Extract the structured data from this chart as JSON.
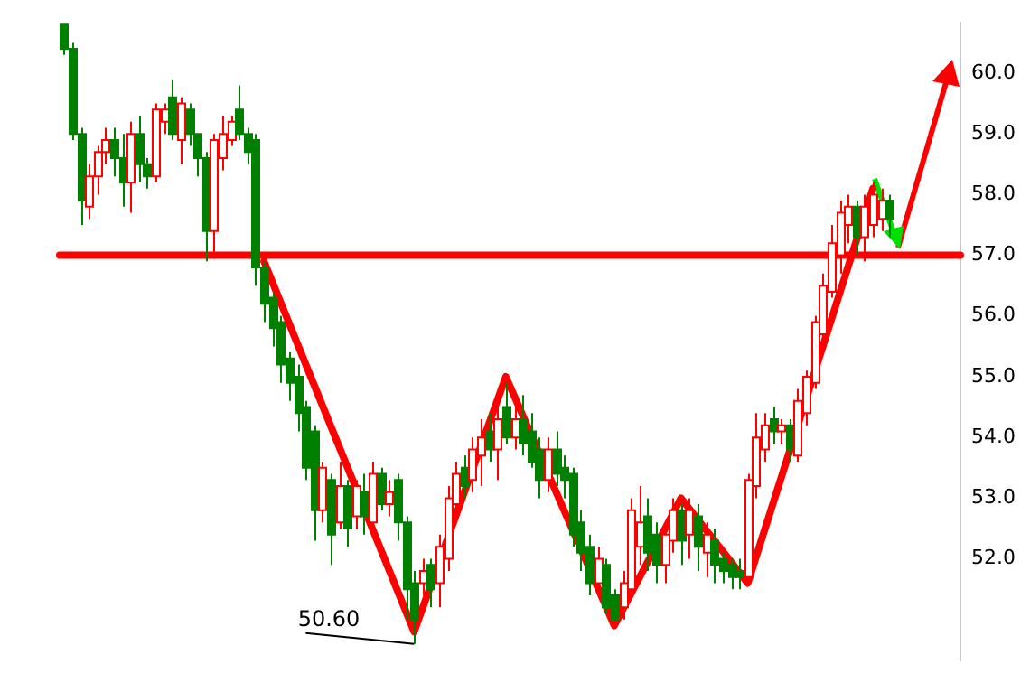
{
  "chart_data": {
    "type": "candlestick",
    "categories": [
      null,
      null,
      null,
      null,
      null,
      null,
      null,
      null,
      null,
      null,
      null,
      null,
      null,
      null,
      null,
      null,
      null,
      null,
      null,
      null,
      null,
      null,
      null,
      null,
      null,
      null,
      null,
      null,
      null,
      null,
      null,
      null,
      null,
      null,
      null,
      null,
      null,
      null,
      null,
      null,
      null,
      null,
      null,
      null,
      null,
      null,
      null,
      null,
      null,
      null,
      null,
      null,
      null,
      null,
      null,
      null,
      null,
      null,
      null,
      null,
      null,
      null,
      null,
      null,
      null,
      null,
      null,
      null,
      null,
      null,
      null,
      null,
      null,
      null,
      null,
      null,
      null,
      null,
      null,
      null,
      null,
      null,
      null,
      null,
      null,
      null,
      null,
      null,
      null,
      null,
      null,
      null,
      null,
      null,
      null,
      null,
      null,
      null,
      null,
      null,
      null,
      null,
      null,
      null,
      null,
      null,
      null,
      null
    ],
    "ohlc": [
      [
        60.8,
        60.8,
        60.3,
        60.4
      ],
      [
        60.4,
        60.5,
        58.9,
        59.0
      ],
      [
        59.0,
        59.1,
        57.5,
        57.9
      ],
      [
        57.8,
        58.5,
        57.6,
        58.3
      ],
      [
        58.3,
        58.8,
        58.0,
        58.7
      ],
      [
        58.7,
        59.1,
        58.5,
        58.9
      ],
      [
        58.9,
        59.1,
        58.3,
        58.6
      ],
      [
        58.6,
        59.0,
        57.8,
        58.2
      ],
      [
        58.2,
        59.2,
        57.7,
        59.0
      ],
      [
        59.0,
        59.3,
        58.2,
        58.5
      ],
      [
        58.5,
        58.6,
        58.1,
        58.3
      ],
      [
        58.3,
        59.5,
        58.2,
        59.4
      ],
      [
        59.2,
        59.5,
        59.0,
        59.4
      ],
      [
        59.6,
        59.9,
        58.9,
        59.0
      ],
      [
        58.9,
        59.6,
        58.5,
        59.5
      ],
      [
        59.4,
        59.5,
        58.8,
        59.0
      ],
      [
        59.0,
        59.0,
        58.3,
        58.6
      ],
      [
        58.6,
        58.7,
        56.9,
        57.4
      ],
      [
        57.4,
        59.0,
        57.0,
        58.9
      ],
      [
        58.6,
        59.3,
        58.4,
        59.0
      ],
      [
        58.9,
        59.3,
        58.8,
        59.2
      ],
      [
        59.4,
        59.8,
        58.9,
        59.0
      ],
      [
        59.0,
        59.1,
        58.5,
        58.7
      ],
      [
        58.9,
        59.0,
        56.5,
        56.8
      ],
      [
        56.8,
        56.9,
        55.9,
        56.2
      ],
      [
        56.3,
        56.4,
        55.5,
        55.8
      ],
      [
        55.9,
        56.0,
        54.9,
        55.2
      ],
      [
        55.3,
        55.4,
        54.6,
        54.9
      ],
      [
        55.0,
        55.2,
        54.1,
        54.4
      ],
      [
        54.5,
        54.6,
        53.3,
        53.5
      ],
      [
        54.1,
        54.2,
        52.3,
        52.8
      ],
      [
        52.8,
        53.6,
        52.6,
        53.5
      ],
      [
        53.3,
        53.4,
        51.9,
        52.4
      ],
      [
        52.6,
        53.6,
        52.5,
        53.2
      ],
      [
        53.2,
        53.3,
        52.2,
        52.5
      ],
      [
        52.7,
        53.3,
        52.5,
        53.2
      ],
      [
        53.1,
        53.4,
        52.4,
        52.7
      ],
      [
        52.6,
        53.6,
        52.5,
        53.4
      ],
      [
        53.4,
        53.5,
        52.8,
        52.9
      ],
      [
        52.9,
        53.3,
        52.7,
        53.1
      ],
      [
        53.3,
        53.4,
        52.3,
        52.6
      ],
      [
        52.6,
        52.7,
        51.0,
        51.5
      ],
      [
        51.6,
        51.8,
        50.6,
        51.0
      ],
      [
        51.6,
        52.0,
        51.4,
        51.8
      ],
      [
        51.9,
        52.0,
        51.2,
        51.5
      ],
      [
        51.6,
        52.4,
        51.2,
        52.2
      ],
      [
        52.0,
        53.2,
        51.8,
        53.0
      ],
      [
        52.9,
        53.6,
        52.7,
        53.4
      ],
      [
        53.5,
        53.7,
        53.0,
        53.2
      ],
      [
        53.3,
        54.0,
        53.1,
        53.8
      ],
      [
        53.7,
        54.3,
        53.2,
        54.0
      ],
      [
        54.1,
        54.4,
        53.6,
        53.8
      ],
      [
        53.8,
        54.5,
        53.3,
        54.3
      ],
      [
        54.5,
        54.9,
        53.9,
        54.0
      ],
      [
        54.0,
        54.5,
        53.8,
        54.3
      ],
      [
        54.3,
        54.7,
        53.7,
        53.9
      ],
      [
        54.1,
        54.4,
        53.5,
        53.6
      ],
      [
        53.8,
        54.0,
        53.0,
        53.3
      ],
      [
        53.3,
        54.0,
        53.1,
        53.8
      ],
      [
        53.8,
        54.1,
        53.2,
        53.4
      ],
      [
        53.5,
        53.7,
        53.0,
        53.3
      ],
      [
        53.4,
        53.5,
        52.2,
        52.4
      ],
      [
        52.6,
        52.8,
        51.8,
        52.1
      ],
      [
        52.2,
        52.4,
        51.4,
        51.6
      ],
      [
        51.6,
        52.2,
        51.4,
        52.0
      ],
      [
        51.9,
        52.0,
        51.1,
        51.2
      ],
      [
        51.4,
        51.5,
        51.0,
        51.0
      ],
      [
        51.2,
        51.8,
        51.0,
        51.6
      ],
      [
        51.5,
        53.0,
        51.4,
        52.8
      ],
      [
        52.2,
        53.2,
        51.9,
        52.6
      ],
      [
        52.7,
        53.0,
        51.8,
        52.1
      ],
      [
        52.4,
        52.6,
        51.6,
        51.9
      ],
      [
        51.9,
        52.6,
        51.6,
        52.4
      ],
      [
        52.3,
        53.0,
        52.1,
        52.8
      ],
      [
        52.8,
        52.9,
        51.9,
        52.3
      ],
      [
        52.4,
        53.0,
        52.0,
        52.8
      ],
      [
        52.7,
        52.9,
        51.8,
        52.2
      ],
      [
        52.1,
        52.6,
        51.7,
        52.4
      ],
      [
        52.3,
        52.5,
        51.6,
        51.9
      ],
      [
        52.0,
        52.1,
        51.6,
        51.8
      ],
      [
        51.9,
        52.0,
        51.5,
        51.7
      ],
      [
        51.8,
        52.0,
        51.5,
        51.7
      ],
      [
        51.7,
        53.4,
        51.6,
        53.3
      ],
      [
        53.2,
        54.4,
        53.0,
        54.0
      ],
      [
        53.8,
        54.4,
        53.6,
        54.2
      ],
      [
        54.3,
        54.5,
        53.9,
        54.1
      ],
      [
        54.1,
        54.3,
        53.9,
        54.2
      ],
      [
        54.2,
        54.3,
        53.6,
        53.8
      ],
      [
        53.7,
        54.8,
        53.6,
        54.6
      ],
      [
        54.4,
        55.1,
        54.2,
        55.0
      ],
      [
        54.9,
        56.0,
        54.8,
        55.9
      ],
      [
        55.7,
        56.7,
        55.6,
        56.5
      ],
      [
        56.4,
        57.5,
        56.3,
        57.2
      ],
      [
        57.0,
        57.9,
        56.7,
        57.7
      ],
      [
        57.5,
        58.0,
        57.2,
        57.8
      ],
      [
        57.8,
        57.9,
        57.0,
        57.3
      ],
      [
        57.3,
        58.0,
        56.9,
        57.8
      ],
      [
        57.5,
        58.2,
        57.3,
        58.0
      ],
      [
        57.6,
        58.1,
        57.4,
        57.9
      ],
      [
        57.9,
        58.0,
        57.3,
        57.6
      ],
      null,
      null,
      null,
      null,
      null,
      null,
      null,
      null
    ],
    "series": [
      {
        "type": "line",
        "color": "#ff0000",
        "values": [
          null,
          null,
          null,
          null,
          null,
          null,
          null,
          null,
          null,
          null,
          null,
          null,
          null,
          null,
          null,
          null,
          null,
          null,
          null,
          null,
          null,
          null,
          null,
          null,
          56.9,
          null,
          null,
          null,
          null,
          null,
          null,
          null,
          null,
          null,
          null,
          null,
          null,
          null,
          null,
          null,
          null,
          null,
          50.8,
          null,
          null,
          null,
          null,
          null,
          null,
          null,
          null,
          null,
          null,
          55.0,
          null,
          null,
          null,
          null,
          null,
          null,
          null,
          null,
          null,
          null,
          null,
          null,
          50.9,
          null,
          null,
          null,
          null,
          null,
          null,
          null,
          53.0,
          null,
          null,
          null,
          null,
          null,
          null,
          null,
          51.6,
          null,
          null,
          null,
          null,
          null,
          null,
          null,
          null,
          null,
          null,
          null,
          null,
          null,
          null,
          58.1,
          null,
          null,
          null,
          null,
          null,
          null,
          null,
          null,
          null,
          null
        ]
      }
    ],
    "ref_lines": [
      {
        "axis": "y",
        "value": 57,
        "color": "#ff0000"
      }
    ],
    "ylim": [
      50.33,
      60.83
    ],
    "yticks": [
      {
        "value": 52,
        "label": "52.0"
      },
      {
        "value": 53,
        "label": "53.0"
      },
      {
        "value": 54,
        "label": "54.0"
      },
      {
        "value": 55,
        "label": "55.0"
      },
      {
        "value": 56,
        "label": "56.0"
      },
      {
        "value": 57,
        "label": "57.0"
      },
      {
        "value": 58,
        "label": "58.0"
      },
      {
        "value": 59,
        "label": "59.0"
      },
      {
        "value": 60,
        "label": "60.0"
      }
    ],
    "tick_labels": "y",
    "annotations": [
      "50.60"
    ]
  }
}
